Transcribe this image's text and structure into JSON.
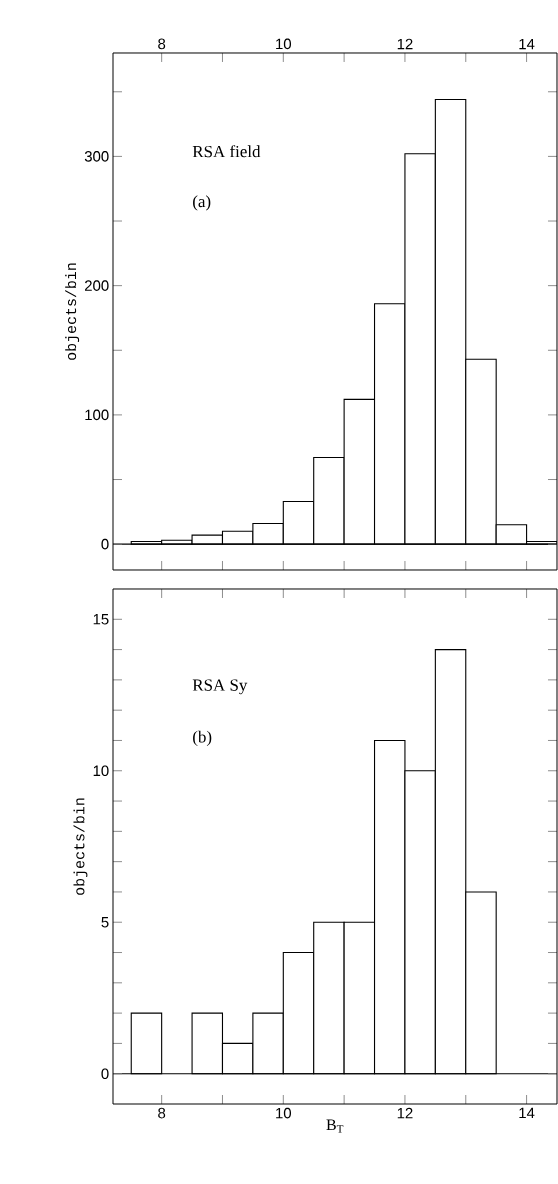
{
  "chart_data": [
    {
      "type": "histogram",
      "ylabel": "objects/bin",
      "annotations": [
        "RSA field",
        "(a)"
      ],
      "color": "#ffffff",
      "bins": [
        7.5,
        8,
        8.5,
        9,
        9.5,
        10,
        10.5,
        11,
        11.5,
        12,
        12.5,
        13,
        13.5,
        14,
        14.5
      ],
      "values": [
        2,
        3,
        7,
        10,
        16,
        33,
        67,
        112,
        186,
        302,
        344,
        143,
        15,
        2
      ],
      "xlim": [
        7.2,
        14.5
      ],
      "xticks": [
        8,
        {
          "value": 9,
          "label": null
        },
        10,
        {
          "value": 11,
          "label": null
        },
        12,
        {
          "value": 13,
          "label": null
        },
        14
      ],
      "ylim": [
        -20,
        380
      ],
      "yticks": [
        0,
        {
          "value": 50,
          "label": null
        },
        100,
        {
          "value": 150,
          "label": null
        },
        200,
        {
          "value": 250,
          "label": null
        },
        300,
        {
          "value": 350,
          "label": null
        }
      ],
      "ref_lines": [
        {
          "axis": "y",
          "value": 0
        }
      ]
    },
    {
      "type": "histogram",
      "ylabel": "objects/bin",
      "xlabel": "B$_{T}$",
      "annotations": [
        "RSA Sy",
        "(b)"
      ],
      "color": "#ffffff",
      "bins": [
        7.5,
        8,
        8.5,
        9,
        9.5,
        10,
        10.5,
        11,
        11.5,
        12,
        12.5,
        13,
        13.5,
        14,
        14.5
      ],
      "values": [
        2,
        0,
        2,
        1,
        2,
        4,
        5,
        5,
        11,
        10,
        14,
        6,
        0,
        0
      ],
      "xlim": [
        7.2,
        14.5
      ],
      "xticks": [
        8,
        {
          "value": 9,
          "label": null
        },
        10,
        {
          "value": 11,
          "label": null
        },
        12,
        {
          "value": 13,
          "label": null
        },
        14
      ],
      "ylim": [
        -1,
        16
      ],
      "yticks": [
        0,
        {
          "value": 1,
          "label": null
        },
        {
          "value": 2,
          "label": null
        },
        {
          "value": 3,
          "label": null
        },
        {
          "value": 4,
          "label": null
        },
        5,
        {
          "value": 6,
          "label": null
        },
        {
          "value": 7,
          "label": null
        },
        {
          "value": 8,
          "label": null
        },
        {
          "value": 9,
          "label": null
        },
        10,
        {
          "value": 11,
          "label": null
        },
        {
          "value": 12,
          "label": null
        },
        {
          "value": 13,
          "label": null
        },
        {
          "value": 14,
          "label": null
        },
        15
      ],
      "ref_lines": [
        {
          "axis": "y",
          "value": 0
        }
      ]
    }
  ]
}
